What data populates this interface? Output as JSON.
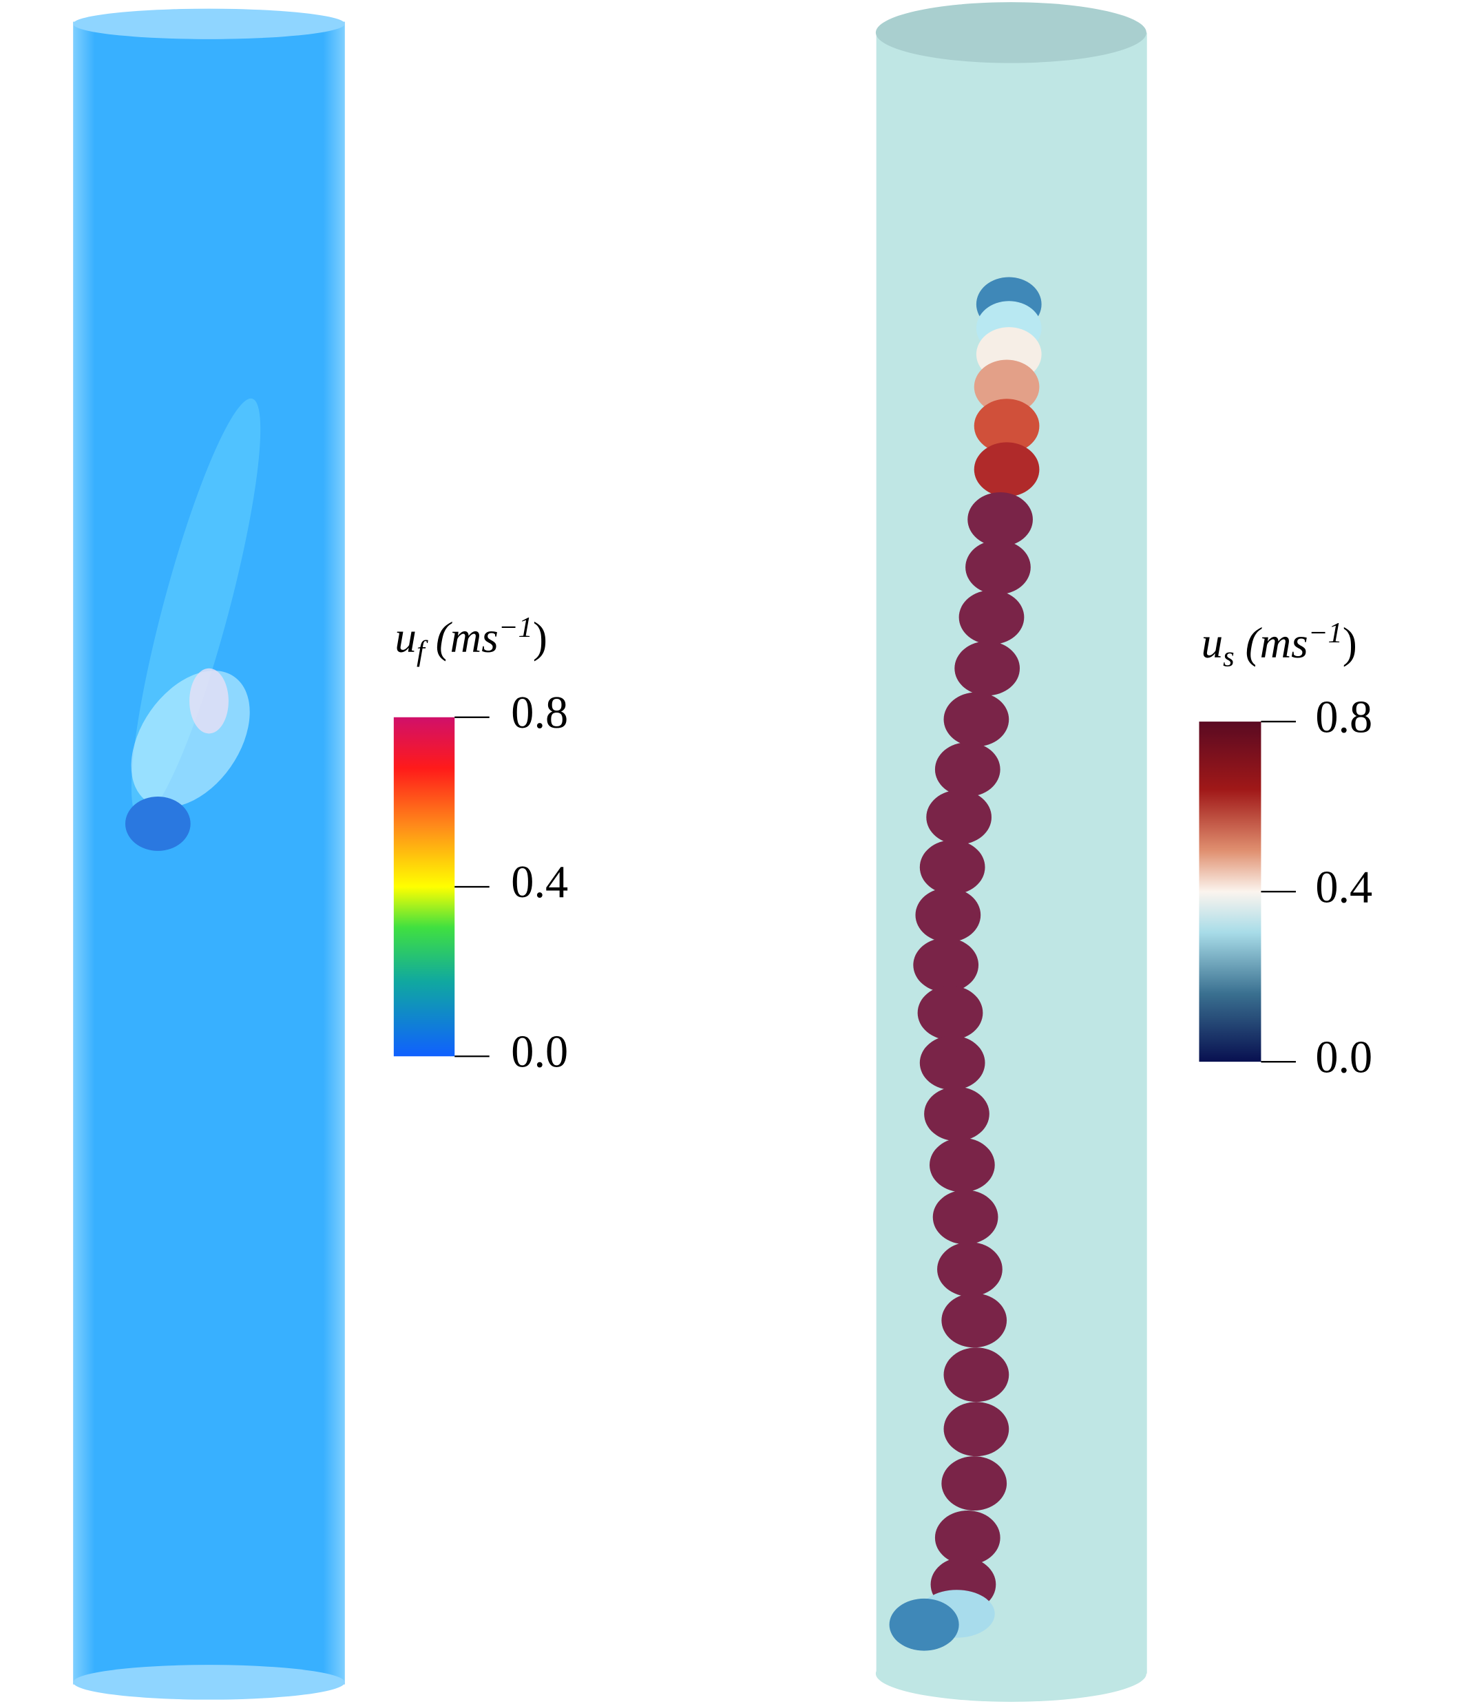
{
  "panels": [
    {
      "colorbar": {
        "title_parts": [
          "u",
          "f",
          " (ms",
          "−1",
          ")"
        ],
        "range": [
          0,
          0.8
        ],
        "ticks": [
          {
            "value": 0,
            "label": "0.0"
          },
          0.4,
          0.8
        ]
      }
    },
    {
      "colorbar": {
        "title_parts": [
          "u",
          "s",
          " (ms",
          "−1",
          ")"
        ],
        "range": [
          0,
          0.8
        ],
        "ticks": [
          {
            "value": 0,
            "label": "0.0"
          },
          0.4,
          0.8
        ]
      }
    }
  ]
}
